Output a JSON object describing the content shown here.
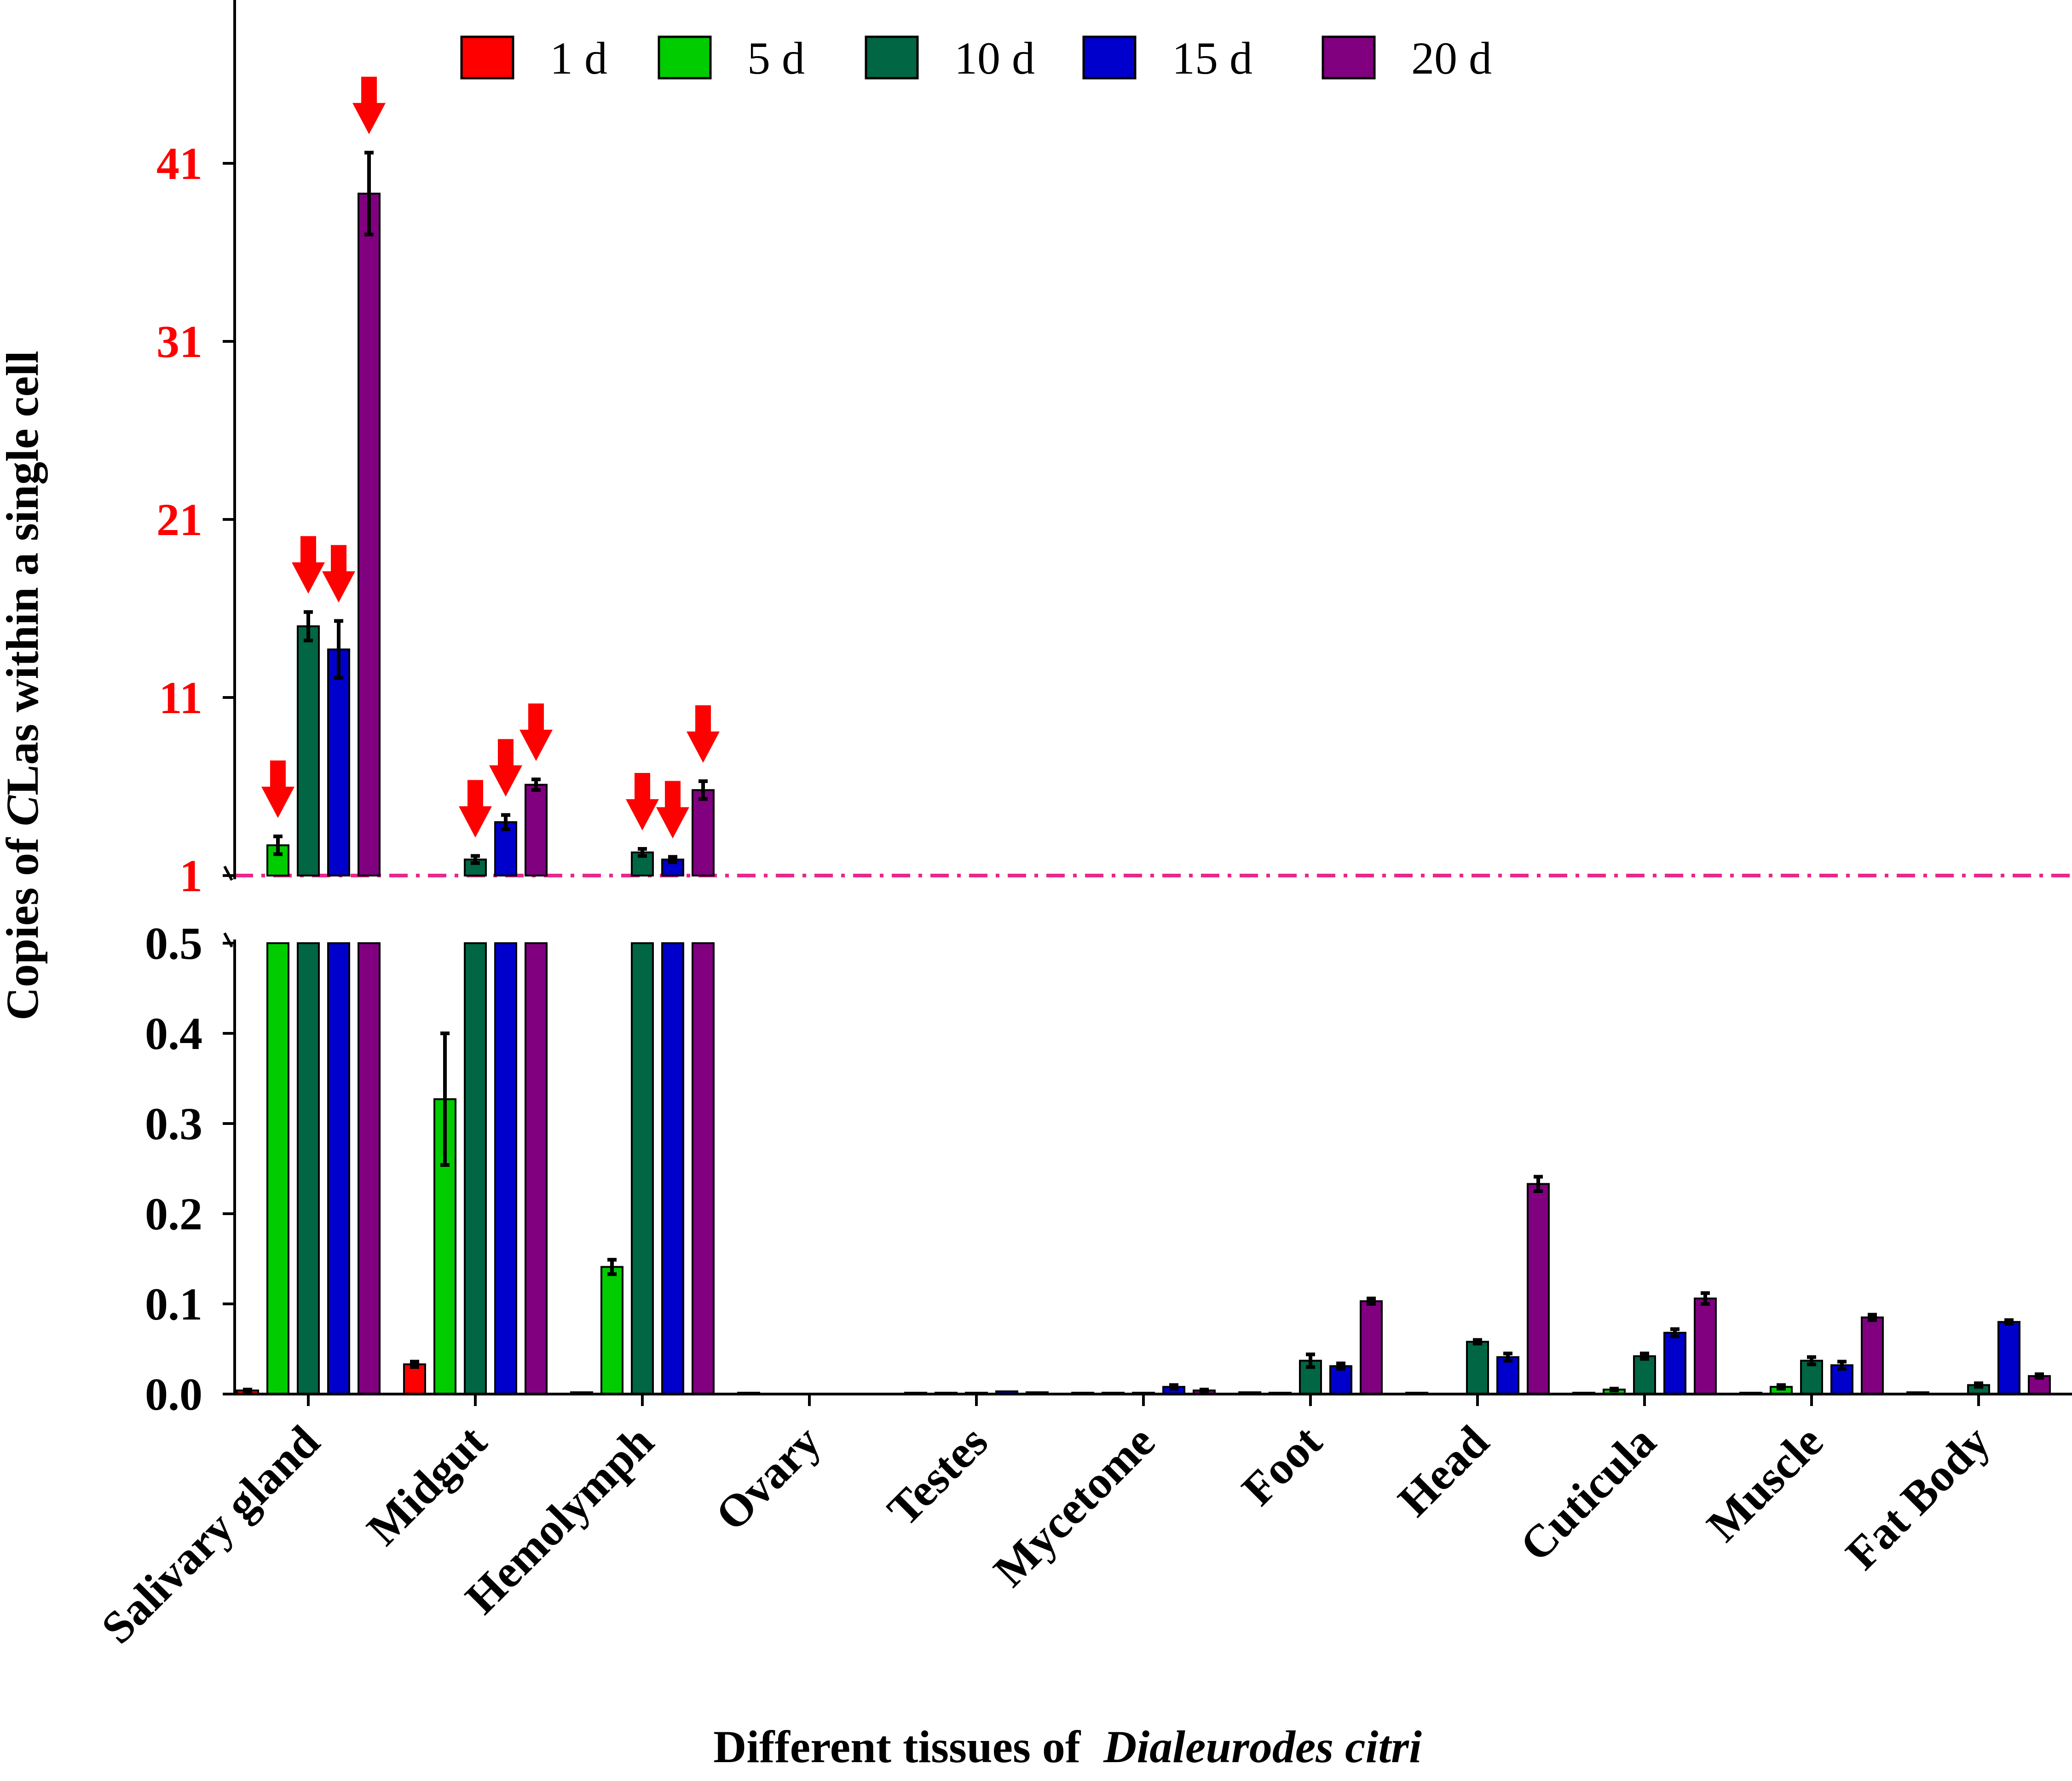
{
  "chart_data": {
    "type": "bar",
    "title": "",
    "xlabel_prefix": "Different tissues of",
    "xlabel_species": "Dialeurodes citri",
    "ylabel_prefix": "Copies of ",
    "ylabel_italic": "C",
    "ylabel_suffix": "Las within a single cell",
    "categories": [
      "Salivary gland",
      "Midgut",
      "Hemolymph",
      "Ovary",
      "Testes",
      "Mycetome",
      "Foot",
      "Head",
      "Cuticula",
      "Muscle",
      "Fat Body"
    ],
    "series": [
      {
        "name": "1 d",
        "color": "#ff0000",
        "values": [
          0.004,
          0.033,
          0.002,
          0.001,
          0.001,
          0.001,
          0.002,
          0.001,
          0.001,
          0.001,
          0.002
        ],
        "errors": [
          0.001,
          0.003,
          0,
          0,
          0,
          0,
          0,
          0,
          0,
          0,
          0
        ]
      },
      {
        "name": "5 d",
        "color": "#00cc00",
        "values": [
          2.7,
          0.327,
          0.141,
          null,
          0.001,
          0.001,
          0.001,
          null,
          0.005,
          0.008,
          null
        ],
        "errors": [
          0.5,
          0.073,
          0.008,
          0,
          0,
          0,
          0,
          0,
          0.001,
          0.002,
          0
        ]
      },
      {
        "name": "10 d",
        "color": "#006644",
        "values": [
          15.0,
          1.9,
          2.3,
          null,
          0.001,
          0.001,
          0.037,
          0.058,
          0.042,
          0.037,
          0.01
        ]
      },
      {
        "name": "15 d",
        "color": "#0000cc",
        "values": [
          13.7,
          4.0,
          1.9,
          null,
          0.003,
          0.008,
          0.031,
          0.041,
          0.068,
          0.032,
          0.08
        ],
        "errors": [
          1.6,
          0.4,
          0.15,
          0,
          0,
          0.002,
          0.003,
          0.004,
          0.004,
          0.004,
          0.002
        ]
      },
      {
        "name": "20 d",
        "color": "#800080",
        "values": [
          39.3,
          6.1,
          5.8,
          null,
          0.002,
          0.004,
          0.103,
          0.233,
          0.106,
          0.085,
          0.02
        ],
        "errors": [
          2.3,
          0.3,
          0.5,
          0,
          0,
          0.001,
          0.003,
          0.008,
          0.006,
          0.003,
          0.002
        ]
      }
    ],
    "errors_10d": [
      0.8,
      0.2,
      0.2,
      0,
      0,
      0,
      0.007,
      0.002,
      0.003,
      0.004,
      0.002
    ],
    "upper_axis": {
      "ylim": [
        1,
        50
      ],
      "ticks": [
        1,
        11,
        21,
        31,
        41
      ],
      "tick_color": "#ff0000"
    },
    "lower_axis": {
      "ylim": [
        0,
        0.5
      ],
      "ticks": [
        "0.0",
        "0.1",
        "0.2",
        "0.3",
        "0.4",
        "0.5"
      ]
    },
    "reference_line": {
      "value": 1,
      "style": "dash-dot",
      "color": "#e8288a"
    },
    "arrows": [
      {
        "category": 0,
        "series": 1
      },
      {
        "category": 0,
        "series": 2
      },
      {
        "category": 0,
        "series": 3
      },
      {
        "category": 0,
        "series": 4
      },
      {
        "category": 1,
        "series": 2
      },
      {
        "category": 1,
        "series": 3
      },
      {
        "category": 1,
        "series": 4
      },
      {
        "category": 2,
        "series": 2
      },
      {
        "category": 2,
        "series": 3
      },
      {
        "category": 2,
        "series": 4
      }
    ],
    "arrow_color": "#ff0000",
    "legend_position": "top"
  }
}
